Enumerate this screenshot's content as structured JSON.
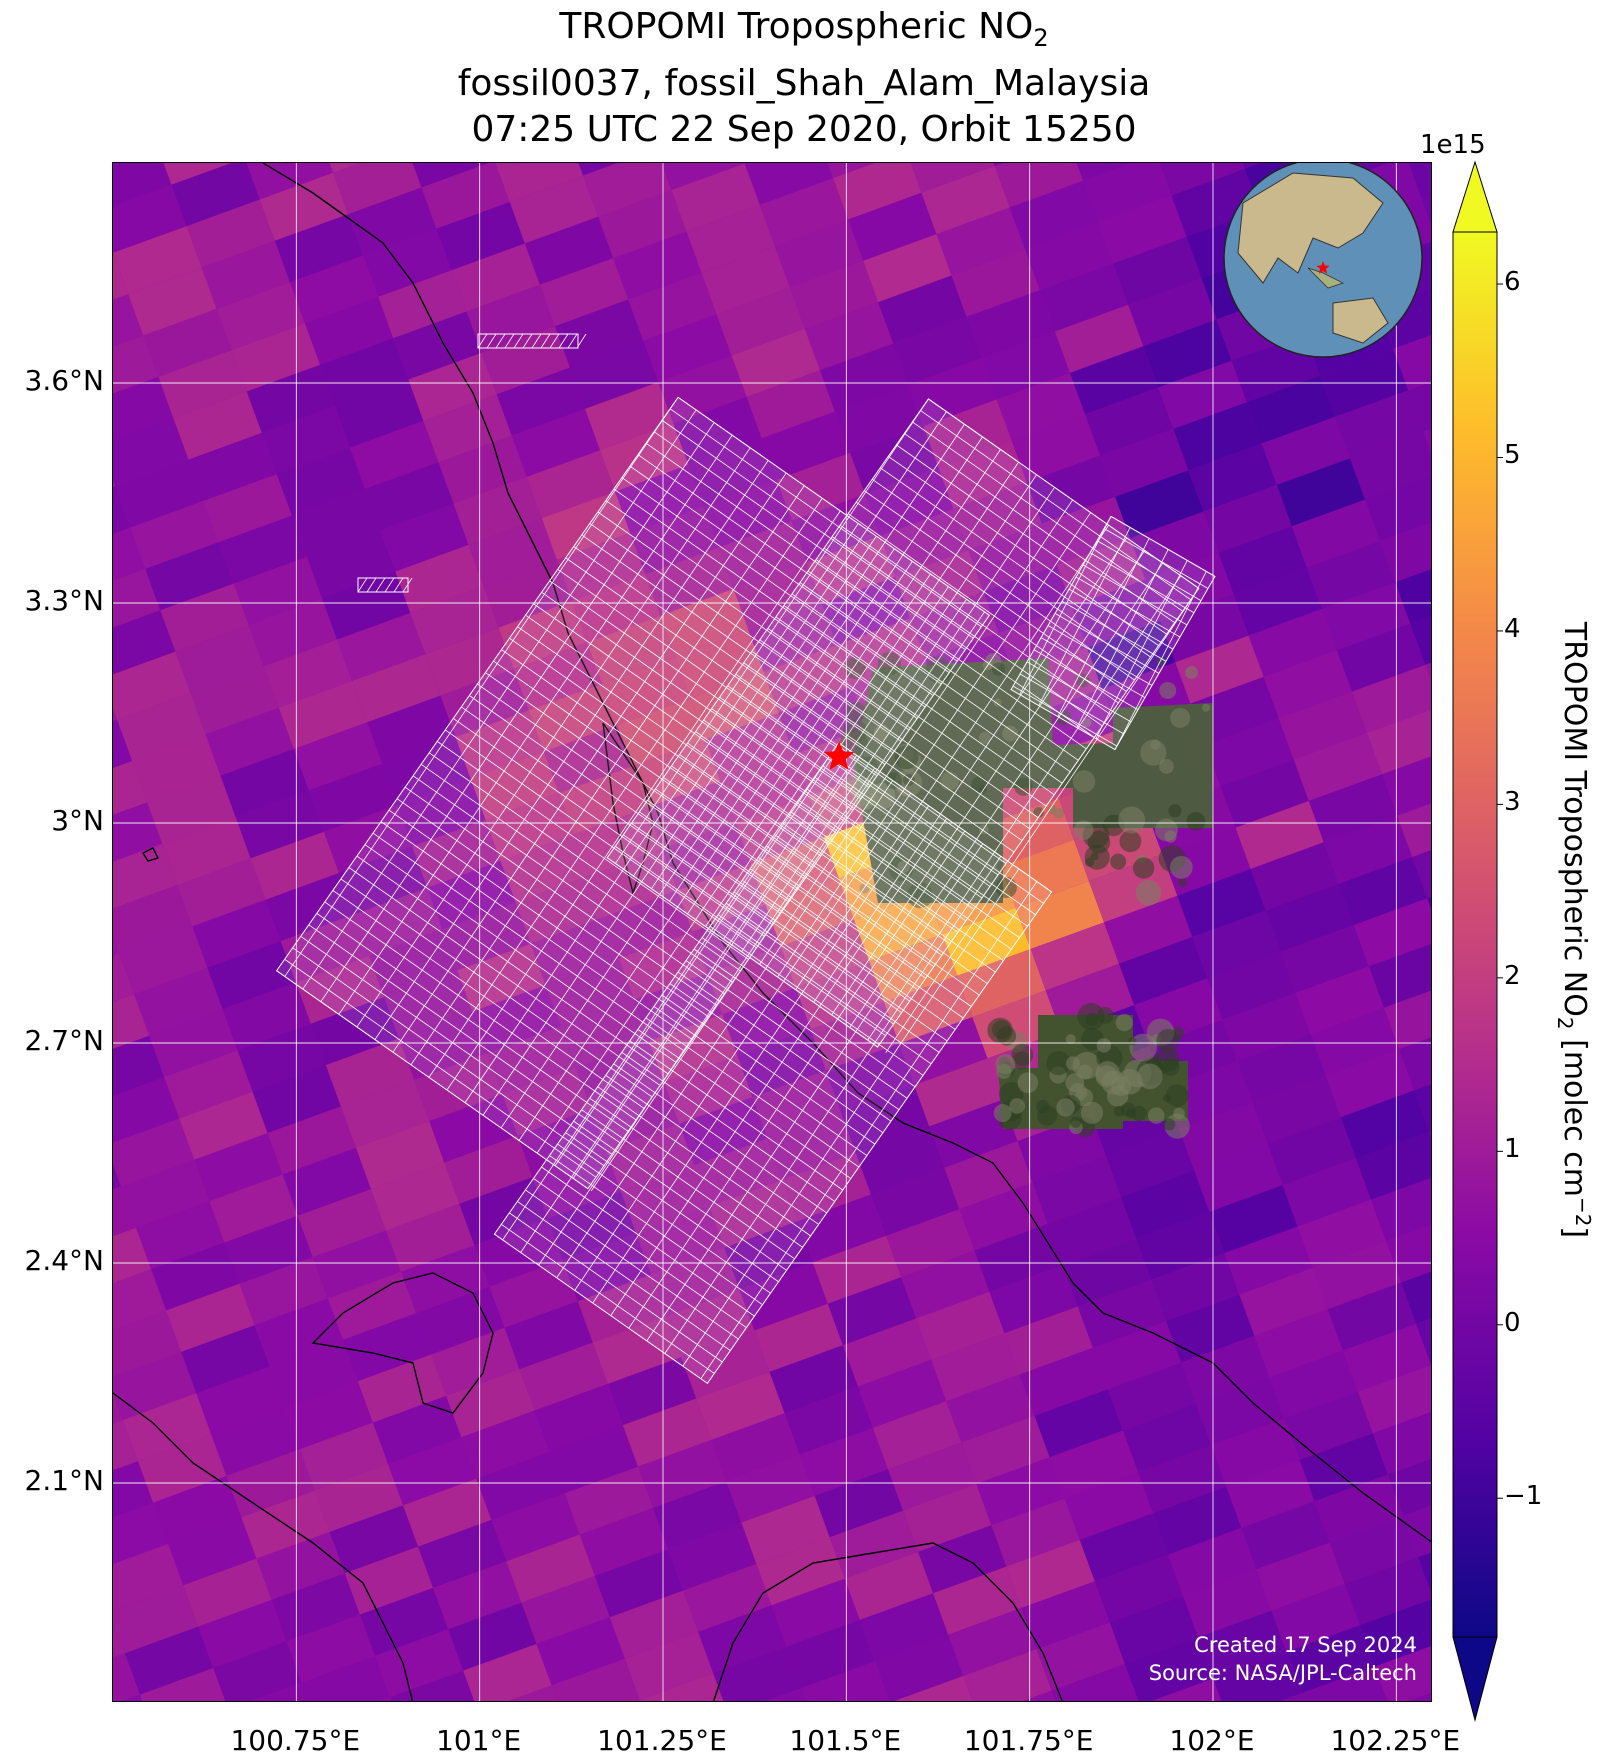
{
  "title": {
    "line1_prefix": "TROPOMI Tropospheric NO",
    "line1_sub": "2",
    "line2": "fossil0037, fossil_Shah_Alam_Malaysia",
    "line3": "07:25 UTC 22 Sep 2020, Orbit 15250"
  },
  "map": {
    "lon_range": [
      100.5,
      102.3
    ],
    "lat_range": [
      1.8,
      3.9
    ],
    "lat_ticks": [
      "3.6°N",
      "3.3°N",
      "3°N",
      "2.7°N",
      "2.4°N",
      "2.1°N"
    ],
    "lat_tick_values": [
      3.6,
      3.3,
      3.0,
      2.7,
      2.4,
      2.1
    ],
    "lon_ticks": [
      "100.75°E",
      "101°E",
      "101.25°E",
      "101.5°E",
      "101.75°E",
      "102°E",
      "102.25°E"
    ],
    "lon_tick_values": [
      100.75,
      101.0,
      101.25,
      101.5,
      101.75,
      102.0,
      102.25
    ],
    "site_marker": {
      "lon": 101.49,
      "lat": 3.09,
      "color": "#ff0000",
      "icon": "star-icon"
    },
    "grid": true,
    "colormap": "plasma",
    "target_area_overlay": "white hatched target polygons over the site"
  },
  "colorbar": {
    "range": [
      -1.8,
      6.3
    ],
    "ticks": [
      "6",
      "5",
      "4",
      "3",
      "2",
      "1",
      "0",
      "−1"
    ],
    "tick_values": [
      6,
      5,
      4,
      3,
      2,
      1,
      0,
      -1
    ],
    "exponent_label": "1e15",
    "label_prefix": "TROPOMI Tropospheric NO",
    "label_sub": "2",
    "label_mid": " [molec cm",
    "label_sup": "−2",
    "label_suffix": "]",
    "extend": "both"
  },
  "credits": {
    "created": "Created 17 Sep 2024",
    "source": "Source: NASA/JPL-Caltech"
  },
  "inset_globe": {
    "description_icon": "globe-icon",
    "marker_color": "#ff0000"
  },
  "colors": {
    "low": "#0d0887",
    "mid": "#cc4778",
    "high": "#f0f921",
    "grid": "#ffffff",
    "coast": "#000000"
  }
}
